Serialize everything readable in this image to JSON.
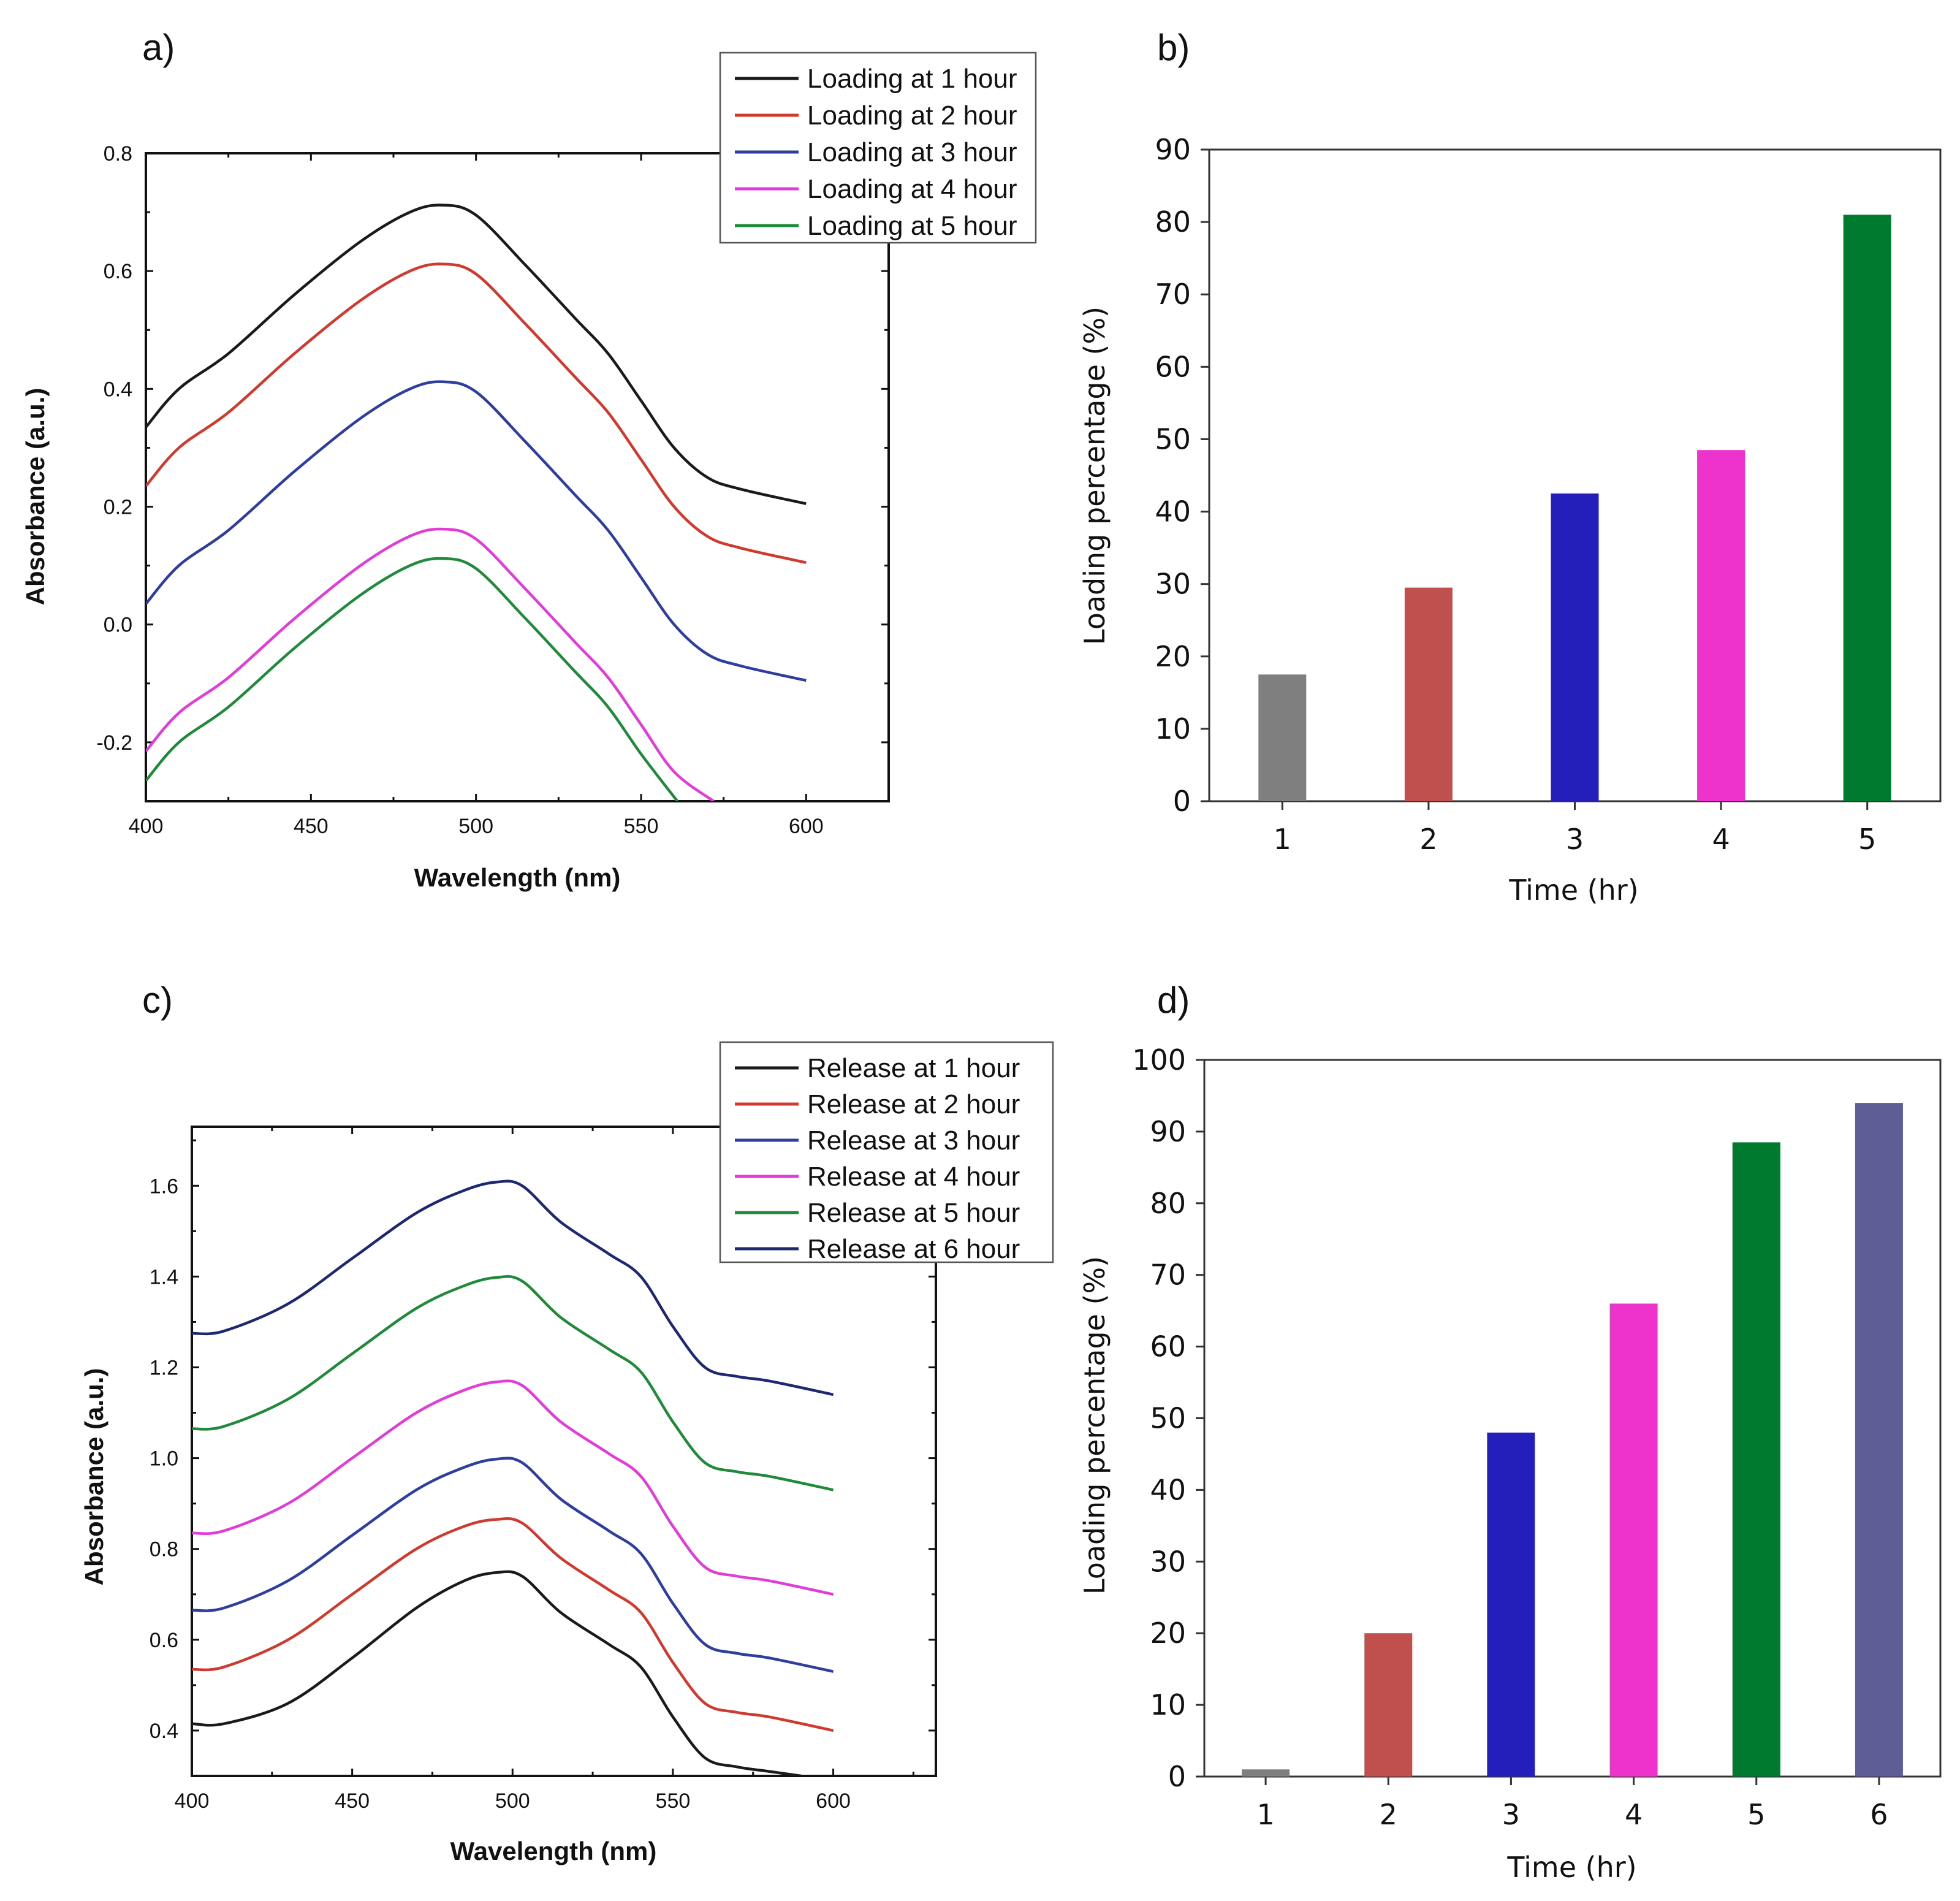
{
  "chart_data": [
    {
      "panel": "a)",
      "type": "line",
      "xlabel": "Wavelength (nm)",
      "ylabel": "Absorbance (a.u.)",
      "xlim": [
        400,
        625
      ],
      "ylim": [
        -0.3,
        0.8
      ],
      "xticks": [
        "400",
        "450",
        "500",
        "550",
        "600"
      ],
      "yticks": [
        "-0.2",
        "0.0",
        "0.2",
        "0.4",
        "0.6",
        "0.8"
      ],
      "legend_position": "top-right",
      "series": [
        {
          "name": "Loading at 1 hour",
          "color": "#1a1a1a",
          "x": [
            400,
            410,
            425,
            445,
            465,
            480,
            490,
            500,
            515,
            530,
            540,
            550,
            560,
            570,
            580,
            600
          ],
          "y": [
            0.335,
            0.4,
            0.46,
            0.56,
            0.65,
            0.7,
            0.712,
            0.695,
            0.61,
            0.52,
            0.46,
            0.38,
            0.3,
            0.25,
            0.23,
            0.205
          ]
        },
        {
          "name": "Loading at 2 hour",
          "color": "#d03a2e",
          "x": [
            400,
            410,
            425,
            445,
            465,
            480,
            490,
            500,
            515,
            530,
            540,
            550,
            560,
            570,
            580,
            600
          ],
          "y": [
            0.235,
            0.3,
            0.36,
            0.46,
            0.55,
            0.6,
            0.612,
            0.595,
            0.51,
            0.42,
            0.36,
            0.28,
            0.2,
            0.15,
            0.13,
            0.105
          ]
        },
        {
          "name": "Loading at 3 hour",
          "color": "#2e3e9e",
          "x": [
            400,
            410,
            425,
            445,
            465,
            480,
            490,
            500,
            515,
            530,
            540,
            550,
            560,
            570,
            580,
            600
          ],
          "y": [
            0.035,
            0.1,
            0.16,
            0.26,
            0.35,
            0.4,
            0.412,
            0.395,
            0.31,
            0.22,
            0.16,
            0.08,
            0.0,
            -0.05,
            -0.07,
            -0.095
          ]
        },
        {
          "name": "Loading at 4 hour",
          "color": "#e23cd8",
          "x": [
            400,
            410,
            425,
            445,
            465,
            480,
            490,
            500,
            515,
            530,
            540,
            550,
            560,
            572
          ],
          "y": [
            -0.215,
            -0.15,
            -0.09,
            0.01,
            0.1,
            0.15,
            0.162,
            0.145,
            0.06,
            -0.03,
            -0.09,
            -0.17,
            -0.25,
            -0.3
          ]
        },
        {
          "name": "Loading at 5 hour",
          "color": "#1f8a3a",
          "x": [
            400,
            410,
            425,
            445,
            465,
            480,
            490,
            500,
            515,
            530,
            540,
            550,
            561
          ],
          "y": [
            -0.265,
            -0.2,
            -0.14,
            -0.04,
            0.05,
            0.1,
            0.112,
            0.095,
            0.01,
            -0.08,
            -0.14,
            -0.22,
            -0.3
          ]
        }
      ]
    },
    {
      "panel": "b)",
      "type": "bar",
      "xlabel": "Time (hr)",
      "ylabel": "Loading percentage (%)",
      "ylim": [
        0,
        90
      ],
      "yticks": [
        "0",
        "10",
        "20",
        "30",
        "40",
        "50",
        "60",
        "70",
        "80",
        "90"
      ],
      "categories": [
        "1",
        "2",
        "3",
        "4",
        "5"
      ],
      "values": [
        17.5,
        29.5,
        42.5,
        48.5,
        81
      ],
      "colors": [
        "#7f7f7f",
        "#c0504d",
        "#241fbb",
        "#ee33cc",
        "#007a2f"
      ]
    },
    {
      "panel": "c)",
      "type": "line",
      "xlabel": "Wavelength (nm)",
      "ylabel": "Absorbance (a.u.)",
      "xlim": [
        400,
        632
      ],
      "ylim": [
        0.3,
        1.73
      ],
      "xticks": [
        "400",
        "450",
        "500",
        "550",
        "600"
      ],
      "yticks": [
        "0.4",
        "0.6",
        "0.8",
        "1.0",
        "1.2",
        "1.4",
        "1.6"
      ],
      "legend_position": "top-right",
      "series": [
        {
          "name": "Release at 1 hour",
          "color": "#1a1a1a",
          "x": [
            400,
            410,
            430,
            450,
            470,
            485,
            495,
            503,
            515,
            530,
            540,
            550,
            560,
            570,
            580,
            590
          ],
          "y": [
            0.415,
            0.415,
            0.46,
            0.56,
            0.67,
            0.73,
            0.748,
            0.74,
            0.66,
            0.59,
            0.54,
            0.43,
            0.34,
            0.32,
            0.31,
            0.3
          ]
        },
        {
          "name": "Release at 2 hour",
          "color": "#d03a2e",
          "x": [
            400,
            410,
            430,
            450,
            470,
            485,
            495,
            503,
            515,
            530,
            540,
            550,
            560,
            570,
            580,
            600
          ],
          "y": [
            0.535,
            0.54,
            0.6,
            0.7,
            0.8,
            0.85,
            0.865,
            0.857,
            0.78,
            0.71,
            0.66,
            0.55,
            0.46,
            0.44,
            0.43,
            0.4
          ]
        },
        {
          "name": "Release at 3 hour",
          "color": "#2e3e9e",
          "x": [
            400,
            410,
            430,
            450,
            470,
            485,
            495,
            503,
            515,
            530,
            540,
            550,
            560,
            570,
            580,
            600
          ],
          "y": [
            0.665,
            0.67,
            0.73,
            0.83,
            0.93,
            0.98,
            0.998,
            0.99,
            0.91,
            0.84,
            0.79,
            0.68,
            0.59,
            0.57,
            0.56,
            0.53
          ]
        },
        {
          "name": "Release at 4 hour",
          "color": "#e23cd8",
          "x": [
            400,
            410,
            430,
            450,
            470,
            485,
            495,
            503,
            515,
            530,
            540,
            550,
            560,
            570,
            580,
            600
          ],
          "y": [
            0.835,
            0.84,
            0.9,
            1.0,
            1.1,
            1.15,
            1.168,
            1.16,
            1.08,
            1.01,
            0.96,
            0.85,
            0.76,
            0.74,
            0.73,
            0.7
          ]
        },
        {
          "name": "Release at 5 hour",
          "color": "#1f8a3a",
          "x": [
            400,
            410,
            430,
            450,
            470,
            485,
            495,
            503,
            515,
            530,
            540,
            550,
            560,
            570,
            580,
            600
          ],
          "y": [
            1.065,
            1.07,
            1.13,
            1.23,
            1.33,
            1.38,
            1.398,
            1.39,
            1.31,
            1.24,
            1.19,
            1.08,
            0.99,
            0.97,
            0.96,
            0.93
          ]
        },
        {
          "name": "Release at 6 hour",
          "color": "#1e2870",
          "x": [
            400,
            410,
            430,
            450,
            470,
            485,
            495,
            503,
            515,
            530,
            540,
            550,
            560,
            570,
            580,
            600
          ],
          "y": [
            1.275,
            1.28,
            1.34,
            1.44,
            1.54,
            1.59,
            1.608,
            1.6,
            1.52,
            1.45,
            1.4,
            1.29,
            1.2,
            1.18,
            1.17,
            1.14
          ]
        }
      ]
    },
    {
      "panel": "d)",
      "type": "bar",
      "xlabel": "Time (hr)",
      "ylabel": "Loading percentage (%)",
      "ylim": [
        0,
        100
      ],
      "yticks": [
        "0",
        "10",
        "20",
        "30",
        "40",
        "50",
        "60",
        "70",
        "80",
        "90",
        "100"
      ],
      "categories": [
        "1",
        "2",
        "3",
        "4",
        "5",
        "6"
      ],
      "values": [
        1,
        20,
        48,
        66,
        88.5,
        94
      ],
      "colors": [
        "#7f7f7f",
        "#c0504d",
        "#241fbb",
        "#ee33cc",
        "#007a2f",
        "#5e5e96"
      ]
    }
  ]
}
